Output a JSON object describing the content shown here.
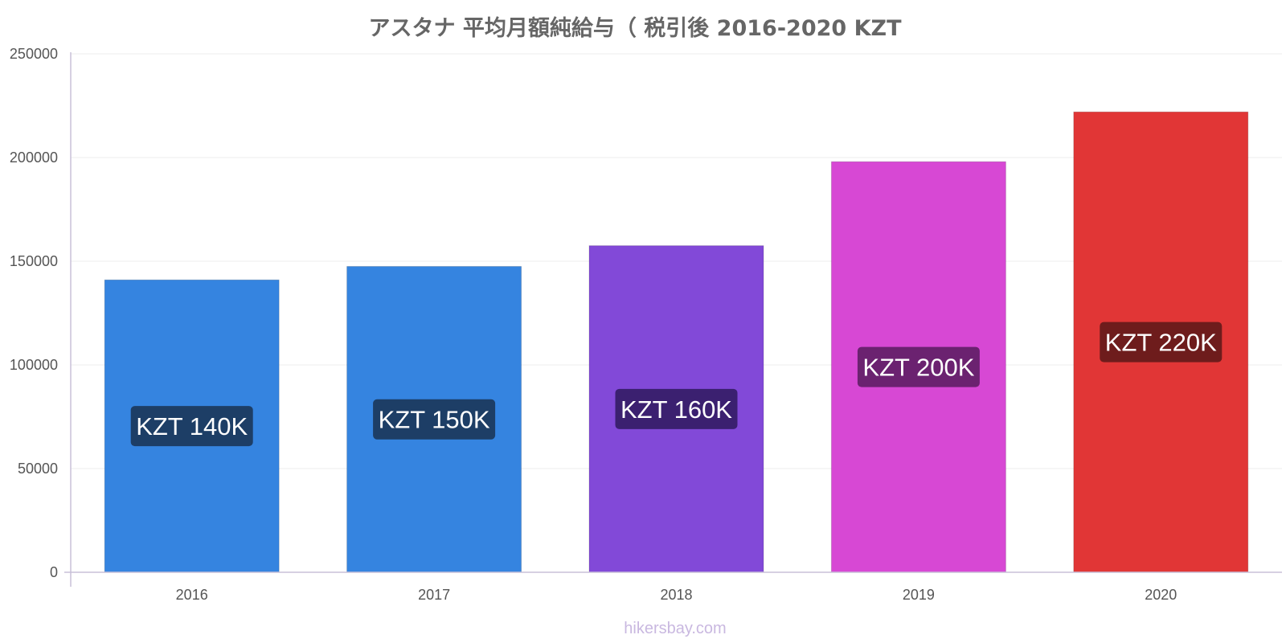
{
  "chart_data": {
    "type": "bar",
    "title": "アスタナ 平均月額純給与（ 税引後 2016-2020 KZT",
    "xlabel": "",
    "ylabel": "",
    "categories": [
      "2016",
      "2017",
      "2018",
      "2019",
      "2020"
    ],
    "values": [
      141000,
      147500,
      157500,
      198000,
      222000
    ],
    "data_labels": [
      "KZT 140K",
      "KZT 150K",
      "KZT 160K",
      "KZT 200K",
      "KZT 220K"
    ],
    "bar_colors": [
      "#3584e0",
      "#3584e0",
      "#8249d8",
      "#d748d4",
      "#e13636"
    ],
    "label_bg_colors": [
      "#1d3e66",
      "#1d3e66",
      "#3b2070",
      "#6b2270",
      "#6e1c1c"
    ],
    "ylim": [
      0,
      250000
    ],
    "yticks": [
      "0",
      "50000",
      "100000",
      "150000",
      "200000",
      "250000"
    ],
    "grid": true,
    "legend": "none"
  },
  "footer": {
    "watermark": "hikersbay.com"
  }
}
